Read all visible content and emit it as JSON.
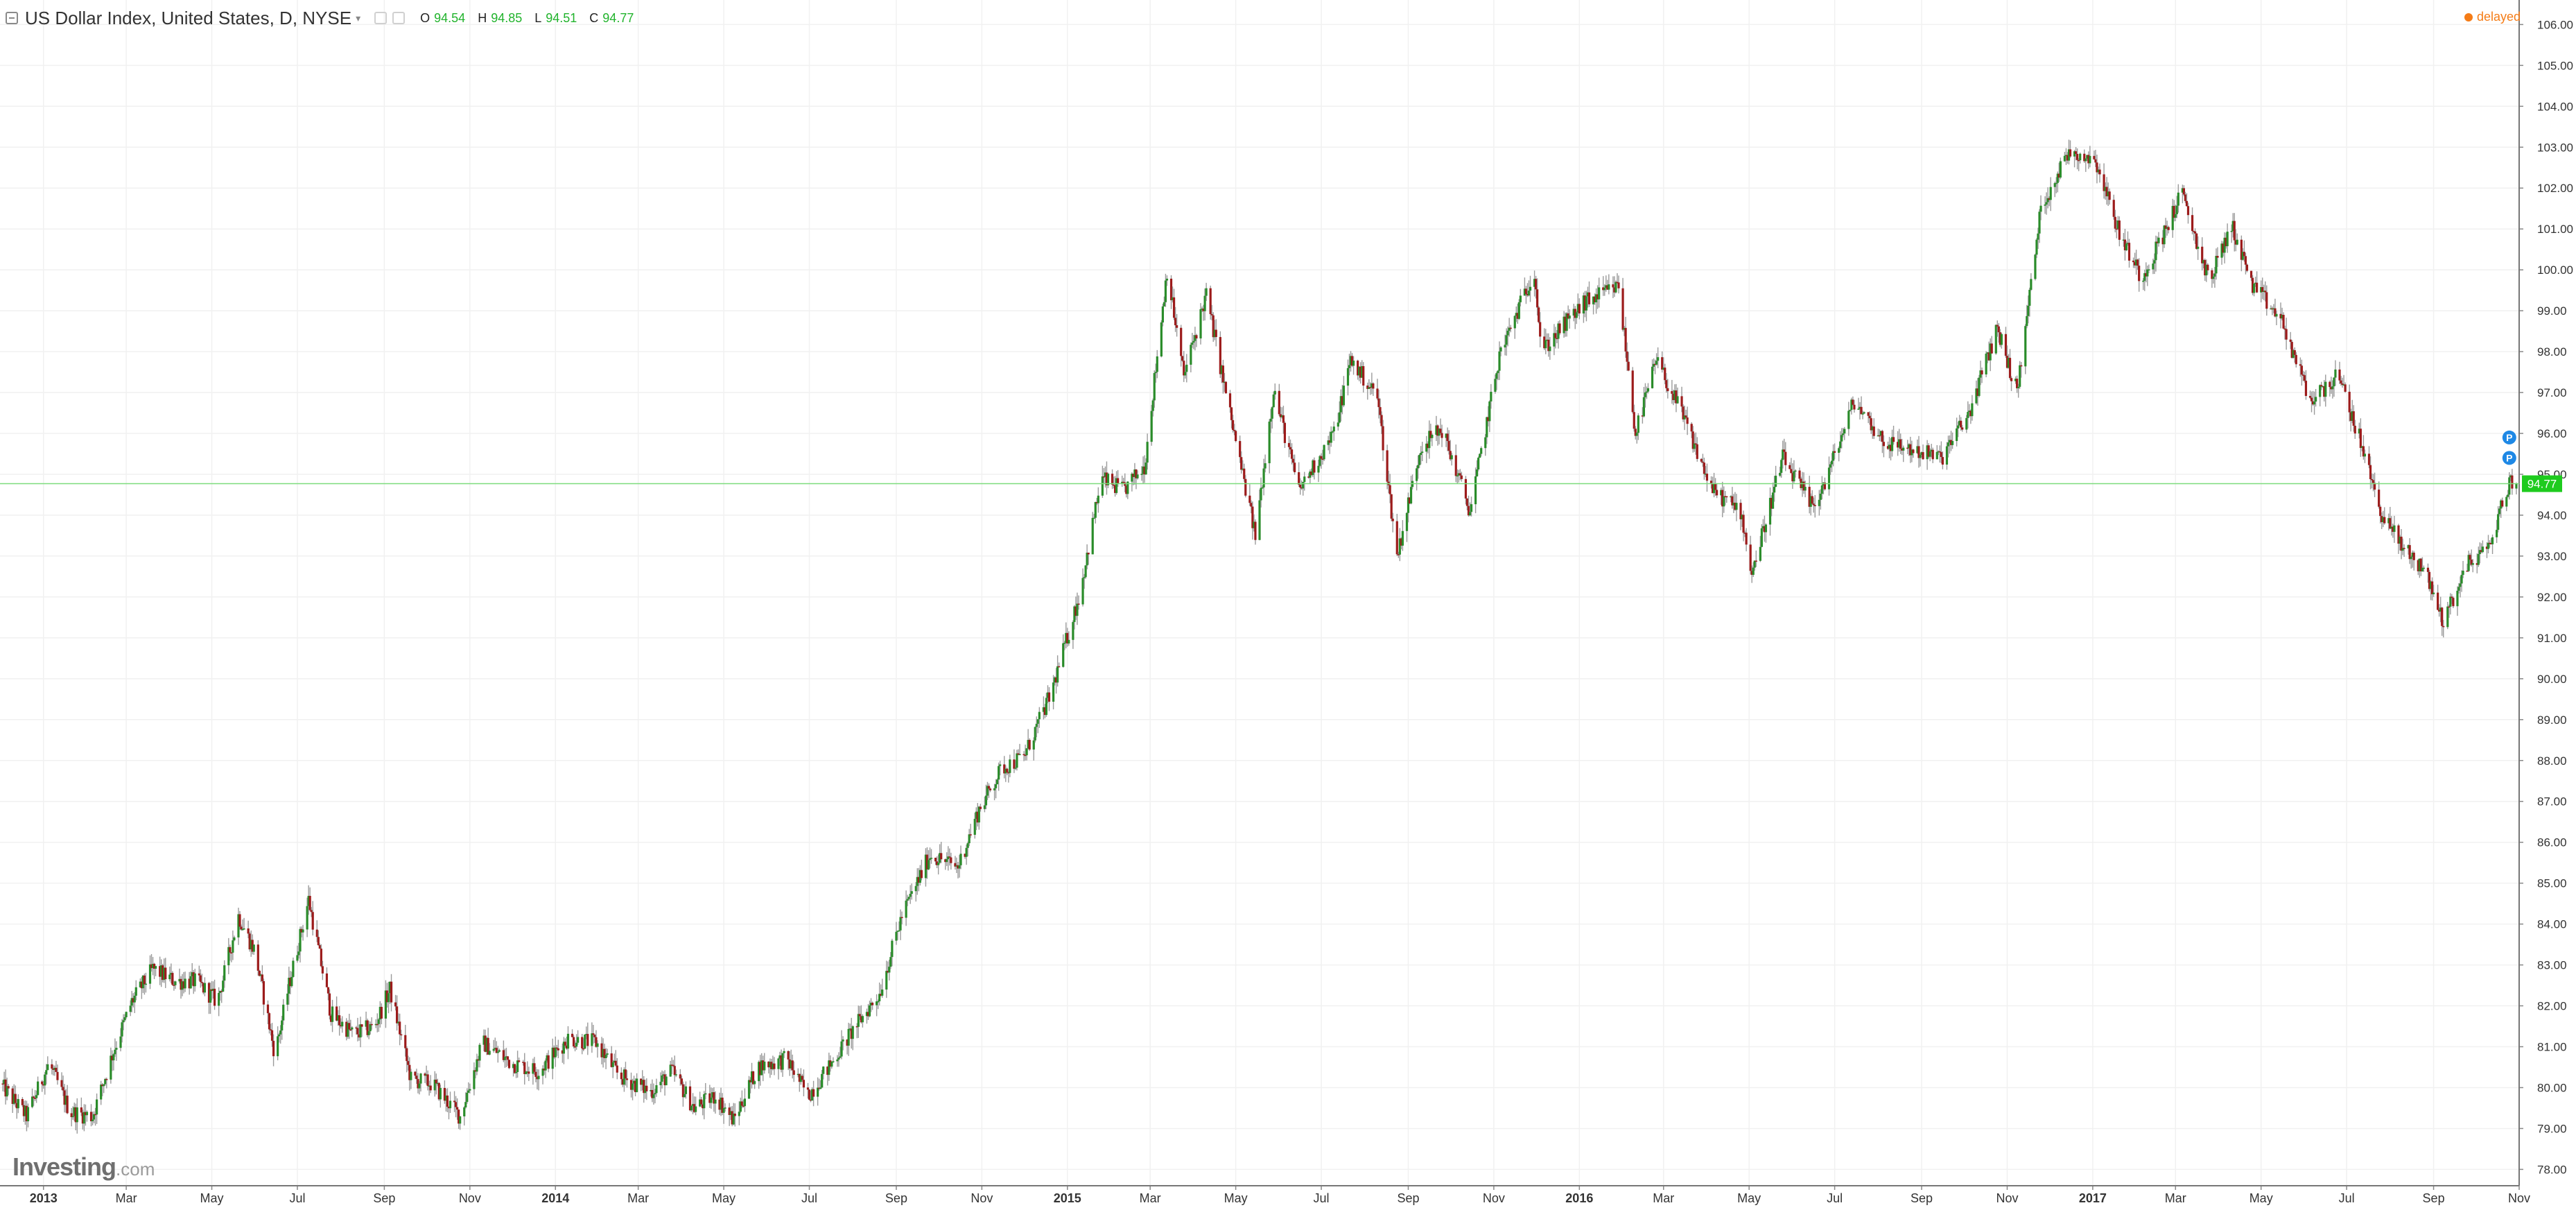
{
  "header": {
    "title": "US Dollar Index, United States, D, NYSE",
    "ohlc": [
      {
        "key": "O",
        "value": "94.54"
      },
      {
        "key": "H",
        "value": "94.85"
      },
      {
        "key": "L",
        "value": "94.51"
      },
      {
        "key": "C",
        "value": "94.77"
      }
    ],
    "status": "delayed"
  },
  "watermark": {
    "brand": "Investing",
    "suffix": ".com"
  },
  "colors": {
    "up": "#2a8c2a",
    "down": "#9c1b1b",
    "wick": "#9a9a9a",
    "grid": "#f1f1f1",
    "last_price_line": "#7ddc7d",
    "last_price_label_bg": "#1ecb1e",
    "marker": "#1e88e5",
    "delayed": "#f57c16"
  },
  "icons": [
    "collapse-icon",
    "settings-icon",
    "close-icon",
    "delayed-status-icon",
    "dividend-marker-icon"
  ],
  "chart_data": {
    "type": "candlestick",
    "timeframe": "D",
    "y_range": [
      77.6,
      106.6
    ],
    "y_ticks": [
      "78.00",
      "79.00",
      "80.00",
      "81.00",
      "82.00",
      "83.00",
      "84.00",
      "85.00",
      "86.00",
      "87.00",
      "88.00",
      "89.00",
      "90.00",
      "91.00",
      "92.00",
      "93.00",
      "94.00",
      "95.00",
      "96.00",
      "97.00",
      "98.00",
      "99.00",
      "100.00",
      "101.00",
      "102.00",
      "103.00",
      "104.00",
      "105.00",
      "106.00"
    ],
    "x_range": [
      "2012-12-01",
      "2017-11-01"
    ],
    "x_ticks": [
      {
        "label": "2013",
        "date": "2013-01-01",
        "bold": true
      },
      {
        "label": "Mar",
        "date": "2013-03-01"
      },
      {
        "label": "May",
        "date": "2013-05-01"
      },
      {
        "label": "Jul",
        "date": "2013-07-01"
      },
      {
        "label": "Sep",
        "date": "2013-09-01"
      },
      {
        "label": "Nov",
        "date": "2013-11-01"
      },
      {
        "label": "2014",
        "date": "2014-01-01",
        "bold": true
      },
      {
        "label": "Mar",
        "date": "2014-03-01"
      },
      {
        "label": "May",
        "date": "2014-05-01"
      },
      {
        "label": "Jul",
        "date": "2014-07-01"
      },
      {
        "label": "Sep",
        "date": "2014-09-01"
      },
      {
        "label": "Nov",
        "date": "2014-11-01"
      },
      {
        "label": "2015",
        "date": "2015-01-01",
        "bold": true
      },
      {
        "label": "Mar",
        "date": "2015-03-01"
      },
      {
        "label": "May",
        "date": "2015-05-01"
      },
      {
        "label": "Jul",
        "date": "2015-07-01"
      },
      {
        "label": "Sep",
        "date": "2015-09-01"
      },
      {
        "label": "Nov",
        "date": "2015-11-01"
      },
      {
        "label": "2016",
        "date": "2016-01-01",
        "bold": true
      },
      {
        "label": "Mar",
        "date": "2016-03-01"
      },
      {
        "label": "May",
        "date": "2016-05-01"
      },
      {
        "label": "Jul",
        "date": "2016-07-01"
      },
      {
        "label": "Sep",
        "date": "2016-09-01"
      },
      {
        "label": "Nov",
        "date": "2016-11-01"
      },
      {
        "label": "2017",
        "date": "2017-01-01",
        "bold": true
      },
      {
        "label": "Mar",
        "date": "2017-03-01"
      },
      {
        "label": "May",
        "date": "2017-05-01"
      },
      {
        "label": "Jul",
        "date": "2017-07-01"
      },
      {
        "label": "Sep",
        "date": "2017-09-01"
      },
      {
        "label": "Nov",
        "date": "2017-11-01"
      }
    ],
    "close_path": [
      [
        "2012-12-01",
        80.1
      ],
      [
        "2012-12-20",
        79.3
      ],
      [
        "2013-01-05",
        80.6
      ],
      [
        "2013-01-20",
        79.4
      ],
      [
        "2013-02-05",
        79.3
      ],
      [
        "2013-02-20",
        80.9
      ],
      [
        "2013-03-05",
        82.1
      ],
      [
        "2013-03-20",
        82.9
      ],
      [
        "2013-04-05",
        82.6
      ],
      [
        "2013-04-20",
        82.6
      ],
      [
        "2013-05-05",
        82.1
      ],
      [
        "2013-05-20",
        84.2
      ],
      [
        "2013-06-01",
        83.3
      ],
      [
        "2013-06-15",
        80.8
      ],
      [
        "2013-06-25",
        82.5
      ],
      [
        "2013-07-09",
        84.6
      ],
      [
        "2013-07-25",
        81.8
      ],
      [
        "2013-08-10",
        81.3
      ],
      [
        "2013-08-25",
        81.5
      ],
      [
        "2013-09-05",
        82.4
      ],
      [
        "2013-09-20",
        80.2
      ],
      [
        "2013-10-05",
        80.1
      ],
      [
        "2013-10-25",
        79.3
      ],
      [
        "2013-11-10",
        81.1
      ],
      [
        "2013-12-01",
        80.6
      ],
      [
        "2013-12-20",
        80.4
      ],
      [
        "2014-01-10",
        81.2
      ],
      [
        "2014-01-30",
        81.1
      ],
      [
        "2014-02-15",
        80.3
      ],
      [
        "2014-03-10",
        79.9
      ],
      [
        "2014-03-25",
        80.4
      ],
      [
        "2014-04-10",
        79.5
      ],
      [
        "2014-04-25",
        79.8
      ],
      [
        "2014-05-08",
        79.2
      ],
      [
        "2014-05-25",
        80.5
      ],
      [
        "2014-06-15",
        80.7
      ],
      [
        "2014-06-30",
        79.8
      ],
      [
        "2014-07-15",
        80.5
      ],
      [
        "2014-08-01",
        81.4
      ],
      [
        "2014-08-20",
        82.3
      ],
      [
        "2014-09-05",
        84.2
      ],
      [
        "2014-09-25",
        85.7
      ],
      [
        "2014-10-15",
        85.4
      ],
      [
        "2014-10-30",
        86.8
      ],
      [
        "2014-11-15",
        87.8
      ],
      [
        "2014-12-01",
        88.1
      ],
      [
        "2014-12-20",
        89.6
      ],
      [
        "2015-01-10",
        92.1
      ],
      [
        "2015-01-25",
        94.9
      ],
      [
        "2015-02-10",
        94.6
      ],
      [
        "2015-02-25",
        95.2
      ],
      [
        "2015-03-13",
        100.0
      ],
      [
        "2015-03-25",
        97.4
      ],
      [
        "2015-04-10",
        99.4
      ],
      [
        "2015-04-25",
        96.8
      ],
      [
        "2015-05-15",
        93.5
      ],
      [
        "2015-05-28",
        97.1
      ],
      [
        "2015-06-15",
        94.6
      ],
      [
        "2015-07-10",
        96.0
      ],
      [
        "2015-07-22",
        97.8
      ],
      [
        "2015-08-10",
        96.9
      ],
      [
        "2015-08-24",
        93.0
      ],
      [
        "2015-09-10",
        95.7
      ],
      [
        "2015-09-25",
        96.1
      ],
      [
        "2015-10-15",
        94.1
      ],
      [
        "2015-11-05",
        97.9
      ],
      [
        "2015-11-30",
        100.0
      ],
      [
        "2015-12-05",
        98.0
      ],
      [
        "2015-12-20",
        98.6
      ],
      [
        "2016-01-05",
        99.2
      ],
      [
        "2016-01-29",
        99.6
      ],
      [
        "2016-02-10",
        96.0
      ],
      [
        "2016-02-25",
        97.8
      ],
      [
        "2016-03-15",
        96.4
      ],
      [
        "2016-04-05",
        94.6
      ],
      [
        "2016-04-25",
        94.1
      ],
      [
        "2016-05-03",
        92.6
      ],
      [
        "2016-05-25",
        95.4
      ],
      [
        "2016-06-15",
        94.2
      ],
      [
        "2016-06-24",
        94.8
      ],
      [
        "2016-07-15",
        96.8
      ],
      [
        "2016-08-05",
        95.8
      ],
      [
        "2016-08-25",
        95.6
      ],
      [
        "2016-09-15",
        95.4
      ],
      [
        "2016-10-05",
        96.5
      ],
      [
        "2016-10-25",
        98.6
      ],
      [
        "2016-11-08",
        97.0
      ],
      [
        "2016-11-25",
        101.5
      ],
      [
        "2016-12-15",
        102.9
      ],
      [
        "2017-01-03",
        102.7
      ],
      [
        "2017-01-20",
        100.9
      ],
      [
        "2017-02-05",
        99.8
      ],
      [
        "2017-02-25",
        101.2
      ],
      [
        "2017-03-05",
        101.9
      ],
      [
        "2017-03-25",
        99.7
      ],
      [
        "2017-04-10",
        101.1
      ],
      [
        "2017-04-25",
        99.6
      ],
      [
        "2017-05-15",
        98.8
      ],
      [
        "2017-06-05",
        96.8
      ],
      [
        "2017-06-25",
        97.4
      ],
      [
        "2017-07-10",
        95.9
      ],
      [
        "2017-07-25",
        94.1
      ],
      [
        "2017-08-10",
        93.2
      ],
      [
        "2017-08-25",
        92.7
      ],
      [
        "2017-09-08",
        91.4
      ],
      [
        "2017-09-25",
        92.8
      ],
      [
        "2017-10-10",
        93.2
      ],
      [
        "2017-10-25",
        94.8
      ],
      [
        "2017-10-30",
        94.77
      ]
    ],
    "last_price": {
      "value": 94.77,
      "label": "94.77"
    },
    "markers": [
      {
        "date": "2017-10-25",
        "price": 95.9,
        "label": "P"
      },
      {
        "date": "2017-10-25",
        "price": 95.4,
        "label": "P"
      }
    ]
  }
}
